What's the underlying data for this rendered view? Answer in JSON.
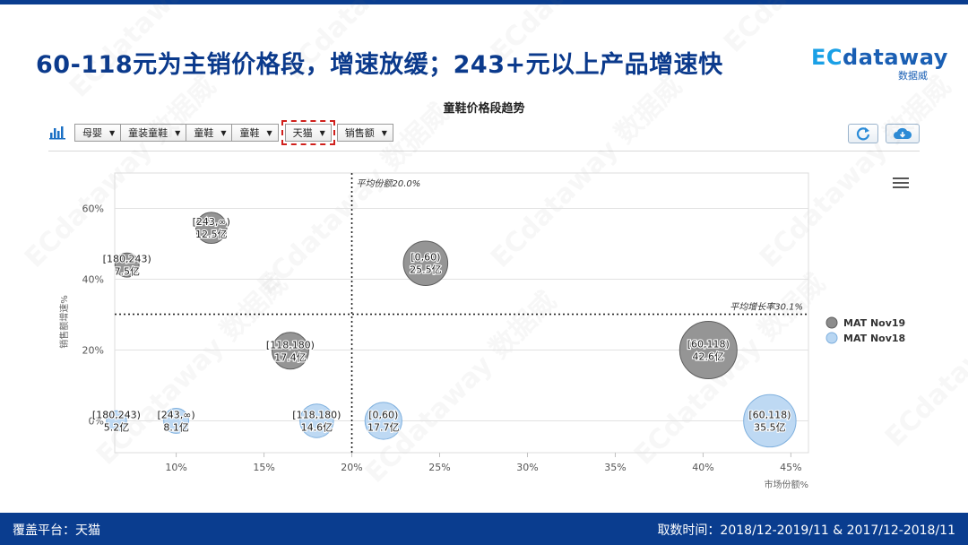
{
  "page": {
    "headline": "60-118元为主销价格段，增速放缓；243+元以上产品增速快",
    "logo_ec": "EC",
    "logo_word": "dataway",
    "logo_sub": "数据威",
    "watermark": "ECdataway 数据威"
  },
  "toolbar": {
    "dropdowns": [
      "母婴",
      "童装童鞋",
      "童鞋",
      "童鞋",
      "天猫",
      "销售额"
    ],
    "highlighted_index": 4
  },
  "footer": {
    "platform": "覆盖平台：天猫",
    "period": "取数时间：2018/12-2019/11 & 2017/12-2018/11"
  },
  "chart_data": {
    "type": "scatter",
    "title": "童鞋价格段趋势",
    "xlabel": "市场份额%",
    "ylabel": "销售额增速%",
    "xlim": [
      0.065,
      0.46
    ],
    "ylim": [
      -0.09,
      0.7
    ],
    "x_ticks": [
      "10%",
      "15%",
      "20%",
      "25%",
      "30%",
      "35%",
      "40%",
      "45%"
    ],
    "x_tick_values": [
      0.1,
      0.15,
      0.2,
      0.25,
      0.3,
      0.35,
      0.4,
      0.45
    ],
    "y_ticks": [
      "0%",
      "20%",
      "40%",
      "60%"
    ],
    "y_tick_values": [
      0,
      0.2,
      0.4,
      0.6
    ],
    "grid": "horizontal",
    "legend_position": "right",
    "reference_lines": [
      {
        "axis": "x",
        "value": 0.2,
        "label": "平均份额20.0%"
      },
      {
        "axis": "y",
        "value": 0.301,
        "label": "平均增长率30.1%"
      }
    ],
    "colors": {
      "MAT Nov19": "#8c8c8c",
      "MAT Nov18": "#b8d6f2"
    },
    "series": [
      {
        "name": "MAT Nov19",
        "points": [
          {
            "segment": "[243,∞)",
            "amount": "12.5亿",
            "x": 0.12,
            "y": 0.545,
            "value": 12.5
          },
          {
            "segment": "[180,243)",
            "amount": "7.5亿",
            "x": 0.072,
            "y": 0.44,
            "value": 7.5
          },
          {
            "segment": "[0,60)",
            "amount": "25.5亿",
            "x": 0.242,
            "y": 0.445,
            "value": 25.5
          },
          {
            "segment": "[118,180)",
            "amount": "17.4亿",
            "x": 0.165,
            "y": 0.198,
            "value": 17.4
          },
          {
            "segment": "[60,118)",
            "amount": "42.6亿",
            "x": 0.403,
            "y": 0.2,
            "value": 42.6
          }
        ]
      },
      {
        "name": "MAT Nov18",
        "points": [
          {
            "segment": "[180,243)",
            "amount": "5.2亿",
            "x": 0.066,
            "y": 0.0,
            "value": 5.2
          },
          {
            "segment": "[243,∞)",
            "amount": "8.1亿",
            "x": 0.1,
            "y": 0.0,
            "value": 8.1
          },
          {
            "segment": "[118,180)",
            "amount": "14.6亿",
            "x": 0.18,
            "y": 0.0,
            "value": 14.6
          },
          {
            "segment": "[0,60)",
            "amount": "17.7亿",
            "x": 0.218,
            "y": 0.0,
            "value": 17.7
          },
          {
            "segment": "[60,118)",
            "amount": "35.5亿",
            "x": 0.438,
            "y": 0.0,
            "value": 35.5
          }
        ]
      }
    ]
  }
}
